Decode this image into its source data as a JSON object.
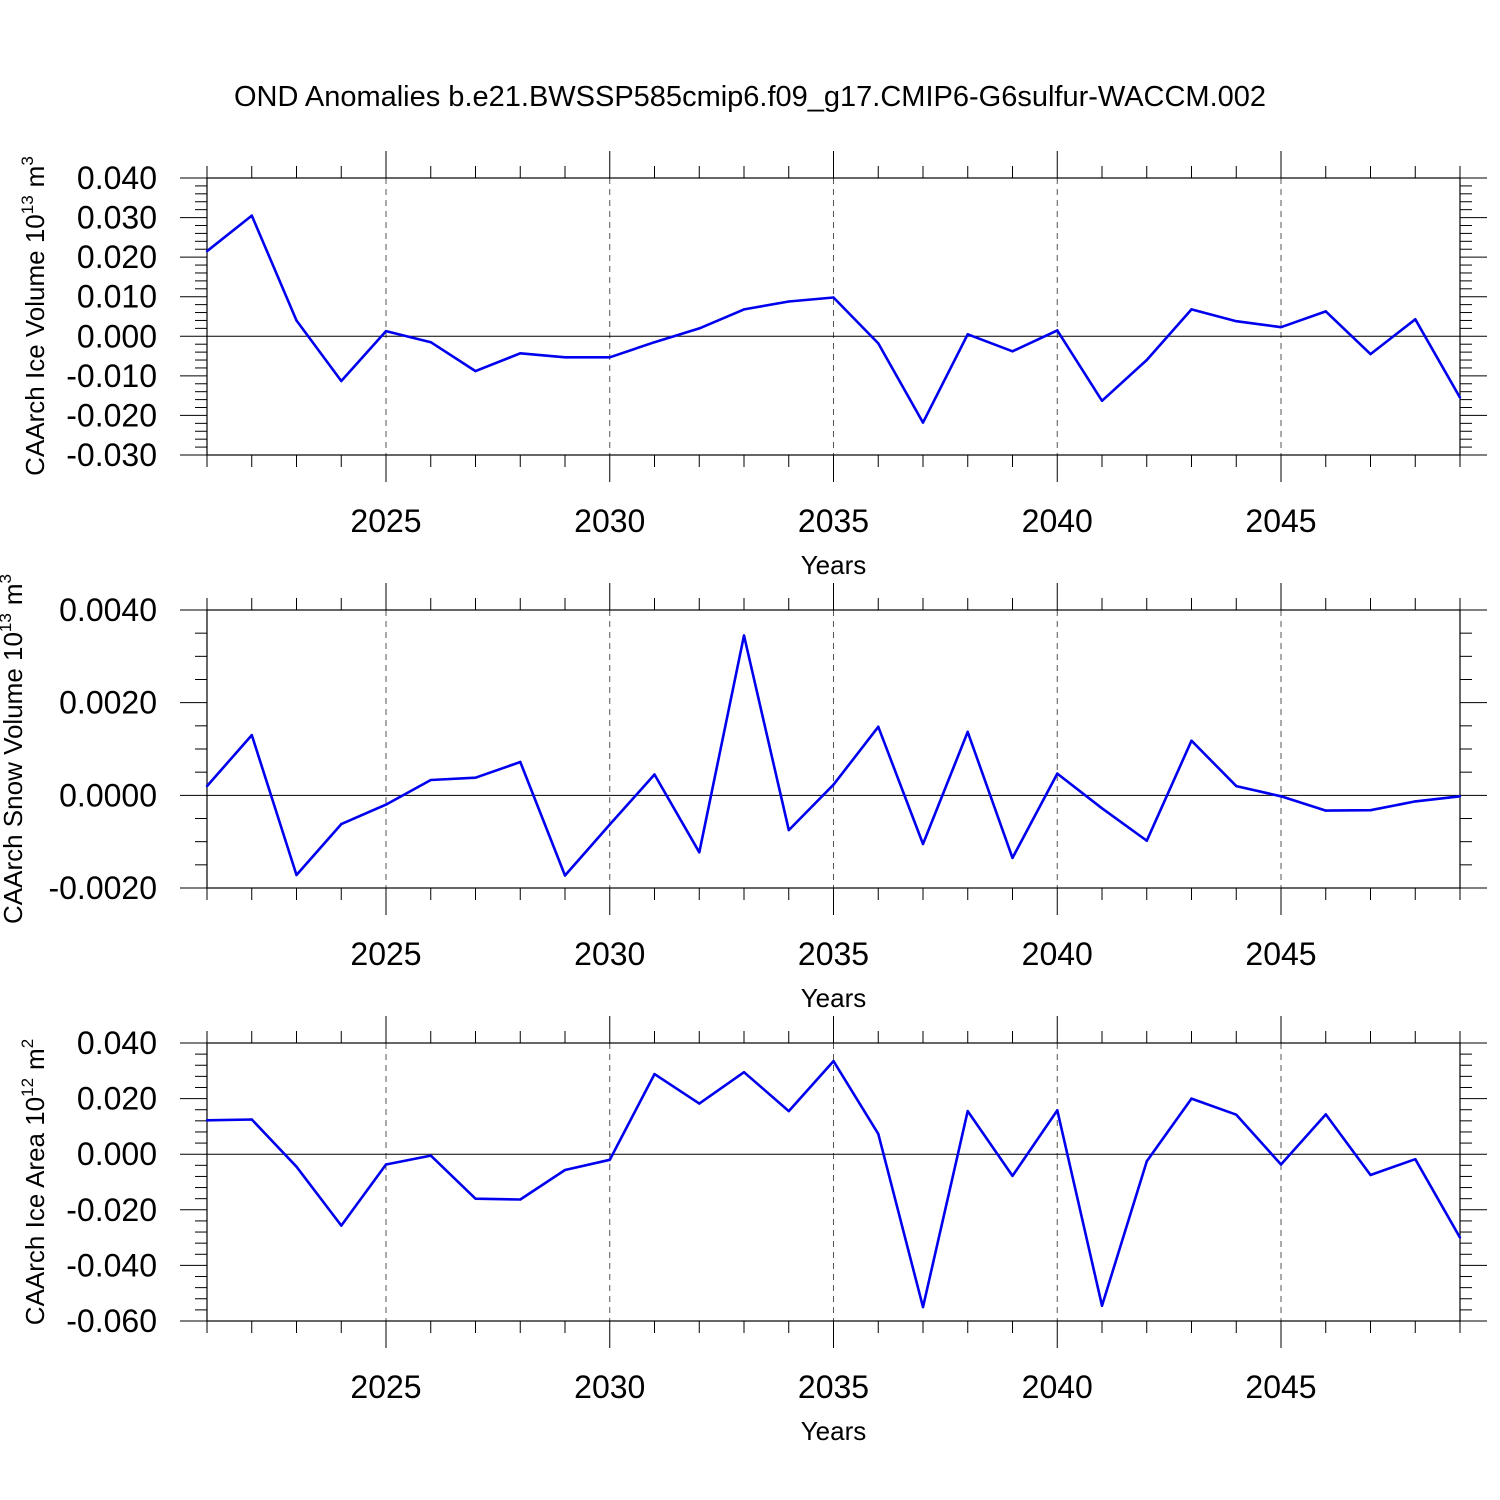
{
  "title": "OND Anomalies b.e21.BWSSP585cmip6.f09_g17.CMIP6-G6sulfur-WACCM.002",
  "line_color": "#0000ee",
  "chart_data": [
    {
      "type": "line",
      "ylabel": "CAArch Ice Volume 10",
      "ylabel_exp": "13",
      "ylabel_unit": "m",
      "ylabel_unit_exp": "3",
      "xlabel": "Years",
      "xlim": [
        2021,
        2049
      ],
      "ylim": [
        -0.03,
        0.04
      ],
      "yticks": [
        0.04,
        0.03,
        0.02,
        0.01,
        0.0,
        -0.01,
        -0.02,
        -0.03
      ],
      "ytick_labels": [
        "0.040",
        "0.030",
        "0.020",
        "0.010",
        "0.000",
        "-0.010",
        "-0.020",
        "-0.030"
      ],
      "ytick_minor_step": 0.002,
      "xticks": [
        2025,
        2030,
        2035,
        2040,
        2045
      ],
      "xtick_labels": [
        "2025",
        "2030",
        "2035",
        "2040",
        "2045"
      ],
      "x": [
        2021,
        2022,
        2023,
        2024,
        2025,
        2026,
        2027,
        2028,
        2029,
        2030,
        2031,
        2032,
        2033,
        2034,
        2035,
        2036,
        2037,
        2038,
        2039,
        2040,
        2041,
        2042,
        2043,
        2044,
        2045,
        2046,
        2047,
        2048,
        2049
      ],
      "values": [
        0.0215,
        0.0305,
        0.004,
        -0.0113,
        0.0013,
        -0.0015,
        -0.0088,
        -0.0043,
        -0.0053,
        -0.0053,
        -0.0015,
        0.002,
        0.0068,
        0.0088,
        0.0098,
        -0.0018,
        -0.0218,
        0.0005,
        -0.0038,
        0.0015,
        -0.0163,
        -0.006,
        0.0068,
        0.0038,
        0.0023,
        0.0063,
        -0.0045,
        0.0043,
        -0.0155
      ]
    },
    {
      "type": "line",
      "ylabel": "CAArch Snow Volume 10",
      "ylabel_exp": "13",
      "ylabel_unit": "m",
      "ylabel_unit_exp": "3",
      "xlabel": "Years",
      "xlim": [
        2021,
        2049
      ],
      "ylim": [
        -0.002,
        0.004
      ],
      "yticks": [
        0.004,
        0.002,
        0.0,
        -0.002
      ],
      "ytick_labels": [
        "0.0040",
        "0.0020",
        "0.0000",
        "-0.0020"
      ],
      "ytick_minor_step": 0.0005,
      "xticks": [
        2025,
        2030,
        2035,
        2040,
        2045
      ],
      "xtick_labels": [
        "2025",
        "2030",
        "2035",
        "2040",
        "2045"
      ],
      "x": [
        2021,
        2022,
        2023,
        2024,
        2025,
        2026,
        2027,
        2028,
        2029,
        2030,
        2031,
        2032,
        2033,
        2034,
        2035,
        2036,
        2037,
        2038,
        2039,
        2040,
        2041,
        2042,
        2043,
        2044,
        2045,
        2046,
        2047,
        2048,
        2049
      ],
      "values": [
        0.0002,
        0.0013,
        -0.00172,
        -0.00062,
        -0.0002,
        0.00033,
        0.00038,
        0.00072,
        -0.00173,
        -0.00063,
        0.00045,
        -0.00123,
        0.00345,
        -0.00075,
        0.00023,
        0.00148,
        -0.00105,
        0.00137,
        -0.00135,
        0.00047,
        -0.00028,
        -0.00098,
        0.00118,
        0.0002,
        -2e-05,
        -0.00033,
        -0.00032,
        -0.00013,
        -2e-05
      ]
    },
    {
      "type": "line",
      "ylabel": "CAArch Ice Area 10",
      "ylabel_exp": "12",
      "ylabel_unit": "m",
      "ylabel_unit_exp": "2",
      "xlabel": "Years",
      "xlim": [
        2021,
        2049
      ],
      "ylim": [
        -0.06,
        0.04
      ],
      "yticks": [
        0.04,
        0.02,
        0.0,
        -0.02,
        -0.04,
        -0.06
      ],
      "ytick_labels": [
        "0.040",
        "0.020",
        "0.000",
        "-0.020",
        "-0.040",
        "-0.060"
      ],
      "ytick_minor_step": 0.004,
      "xticks": [
        2025,
        2030,
        2035,
        2040,
        2045
      ],
      "xtick_labels": [
        "2025",
        "2030",
        "2035",
        "2040",
        "2045"
      ],
      "x": [
        2021,
        2022,
        2023,
        2024,
        2025,
        2026,
        2027,
        2028,
        2029,
        2030,
        2031,
        2032,
        2033,
        2034,
        2035,
        2036,
        2037,
        2038,
        2039,
        2040,
        2041,
        2042,
        2043,
        2044,
        2045,
        2046,
        2047,
        2048,
        2049
      ],
      "values": [
        0.0122,
        0.0125,
        -0.0045,
        -0.0257,
        -0.0037,
        -0.0005,
        -0.016,
        -0.0163,
        -0.0057,
        -0.002,
        0.0288,
        0.0182,
        0.0295,
        0.0155,
        0.0335,
        0.0073,
        -0.055,
        0.0155,
        -0.0078,
        0.0158,
        -0.0545,
        -0.0025,
        0.02,
        0.0142,
        -0.0037,
        0.0143,
        -0.0075,
        -0.0018,
        -0.03
      ]
    }
  ]
}
